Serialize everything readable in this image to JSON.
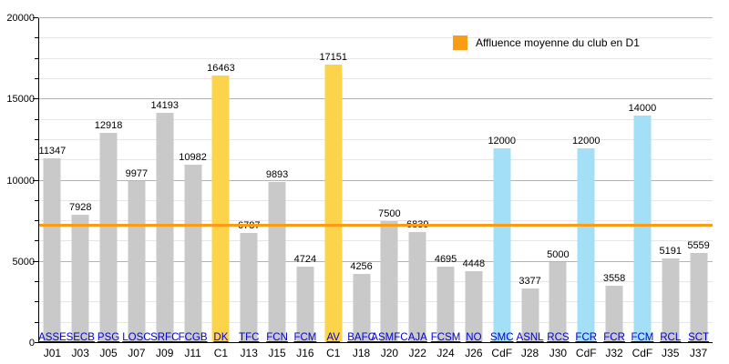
{
  "chart_data": {
    "type": "bar",
    "legend_label": "Affluence moyenne du club en D1",
    "ylim": [
      0,
      20000
    ],
    "y_major_step": 5000,
    "y_minor_step": 1250,
    "y_tick_labels": [
      "0",
      "5000",
      "10000",
      "15000",
      "20000"
    ],
    "grid": true,
    "average_line": {
      "value": 7250
    },
    "colors": {
      "gray": "#c9c9c9",
      "yellow": "#fbd44b",
      "blue": "#a3e0f8",
      "orange_line": "#fb9c15",
      "legend_swatch": "#fb9c15",
      "link_blue": "#0000cc"
    },
    "points": [
      {
        "club": "ASSE",
        "round": "J01",
        "value": 11347,
        "color": "gray"
      },
      {
        "club": "SECB",
        "round": "J03",
        "value": 7928,
        "color": "gray"
      },
      {
        "club": "PSG",
        "round": "J05",
        "value": 12918,
        "color": "gray"
      },
      {
        "club": "LOSC",
        "round": "J07",
        "value": 9977,
        "color": "gray"
      },
      {
        "club": "SRFC",
        "round": "J09",
        "value": 14193,
        "color": "gray"
      },
      {
        "club": "FCGB",
        "round": "J11",
        "value": 10982,
        "color": "gray"
      },
      {
        "club": "DK",
        "round": "C1",
        "value": 16463,
        "color": "yellow"
      },
      {
        "club": "TFC",
        "round": "J13",
        "value": 6787,
        "color": "gray"
      },
      {
        "club": "FCN",
        "round": "J15",
        "value": 9893,
        "color": "gray"
      },
      {
        "club": "FCM",
        "round": "J16",
        "value": 4724,
        "color": "gray"
      },
      {
        "club": "AV",
        "round": "C1",
        "value": 17151,
        "color": "yellow"
      },
      {
        "club": "BAFC",
        "round": "J18",
        "value": 4256,
        "color": "gray"
      },
      {
        "club": "ASMFC",
        "round": "J20",
        "value": 7500,
        "color": "gray"
      },
      {
        "club": "AJA",
        "round": "J22",
        "value": 6839,
        "color": "gray"
      },
      {
        "club": "FCSM",
        "round": "J24",
        "value": 4695,
        "color": "gray"
      },
      {
        "club": "NO",
        "round": "J26",
        "value": 4448,
        "color": "gray"
      },
      {
        "club": "SMC",
        "round": "CdF",
        "value": 12000,
        "color": "blue"
      },
      {
        "club": "ASNL",
        "round": "J28",
        "value": 3377,
        "color": "gray"
      },
      {
        "club": "RCS",
        "round": "J30",
        "value": 5000,
        "color": "gray"
      },
      {
        "club": "FCR",
        "round": "CdF",
        "value": 12000,
        "color": "blue"
      },
      {
        "club": "FCR",
        "round": "J32",
        "value": 3558,
        "color": "gray"
      },
      {
        "club": "FCM",
        "round": "CdF",
        "value": 14000,
        "color": "blue"
      },
      {
        "club": "RCL",
        "round": "J35",
        "value": 5191,
        "color": "gray"
      },
      {
        "club": "SCT",
        "round": "J37",
        "value": 5559,
        "color": "gray"
      }
    ]
  }
}
